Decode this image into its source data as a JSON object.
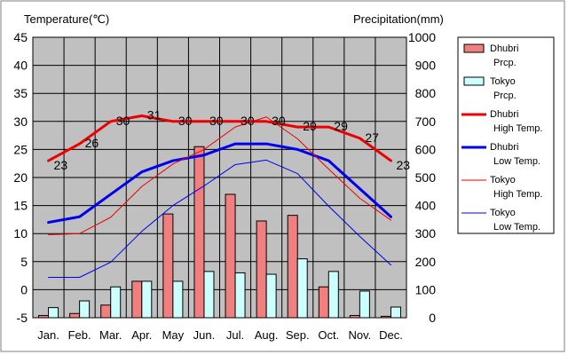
{
  "chart_data": {
    "type": "bar+line",
    "left_axis_title": "Temperature(℃)",
    "right_axis_title": "Precipitation(mm)",
    "left_ylim": [
      -5,
      45
    ],
    "left_ticks": [
      45,
      40,
      35,
      30,
      25,
      20,
      15,
      10,
      5,
      0,
      -5
    ],
    "right_ylim": [
      0,
      1000
    ],
    "right_ticks": [
      1000,
      900,
      800,
      700,
      600,
      500,
      400,
      300,
      200,
      100,
      0
    ],
    "categories": [
      "Jan.",
      "Feb.",
      "Mar.",
      "Apr.",
      "May",
      "Jun.",
      "Jul.",
      "Aug.",
      "Sep.",
      "Oct.",
      "Nov.",
      "Dec."
    ],
    "bar_series": [
      {
        "name": "Dhubri Prcp.",
        "legend_lines": [
          "Dhubri",
          "Prcp."
        ],
        "color": "#f08080",
        "values": [
          8,
          15,
          45,
          130,
          370,
          610,
          440,
          345,
          365,
          110,
          8,
          5
        ]
      },
      {
        "name": "Tokyo Prcp.",
        "legend_lines": [
          "Tokyo",
          "Prcp."
        ],
        "color": "#ccffff",
        "values": [
          36,
          60,
          110,
          130,
          130,
          165,
          160,
          155,
          210,
          165,
          95,
          38
        ]
      }
    ],
    "line_series": [
      {
        "name": "Dhubri High Temp.",
        "legend_lines": [
          "Dhubri",
          "High Temp."
        ],
        "color": "#ee0000",
        "width": 3,
        "values": [
          23,
          26,
          30,
          31,
          30,
          30,
          30,
          30,
          29,
          29,
          27,
          23
        ]
      },
      {
        "name": "Dhubri Low Temp.",
        "legend_lines": [
          "Dhubri",
          "Low Temp."
        ],
        "color": "#0000ee",
        "width": 3,
        "values": [
          12,
          13,
          17,
          21,
          23,
          24,
          26,
          26,
          25,
          23,
          18,
          13
        ]
      },
      {
        "name": "Tokyo High Temp.",
        "legend_lines": [
          "Tokyo",
          "High Temp."
        ],
        "color": "#ee0000",
        "width": 1,
        "values": [
          9.8,
          10,
          12.9,
          18.4,
          22.4,
          25,
          29,
          30.8,
          26.9,
          21.5,
          16.3,
          12.4
        ]
      },
      {
        "name": "Tokyo Low Temp.",
        "legend_lines": [
          "Tokyo",
          "Low Temp."
        ],
        "color": "#0000ee",
        "width": 1,
        "values": [
          2.2,
          2.2,
          4.9,
          10.4,
          15,
          18.5,
          22.3,
          23.1,
          20.7,
          14.9,
          9.5,
          4.4
        ]
      }
    ],
    "data_labels": [
      {
        "month": 0,
        "text": "23"
      },
      {
        "month": 1,
        "text": "26"
      },
      {
        "month": 2,
        "text": "30"
      },
      {
        "month": 3,
        "text": "31"
      },
      {
        "month": 4,
        "text": "30"
      },
      {
        "month": 5,
        "text": "30"
      },
      {
        "month": 6,
        "text": "30"
      },
      {
        "month": 7,
        "text": "30"
      },
      {
        "month": 8,
        "text": "29"
      },
      {
        "month": 9,
        "text": "29"
      },
      {
        "month": 10,
        "text": "27"
      },
      {
        "month": 11,
        "text": "23"
      }
    ],
    "grid": true
  }
}
